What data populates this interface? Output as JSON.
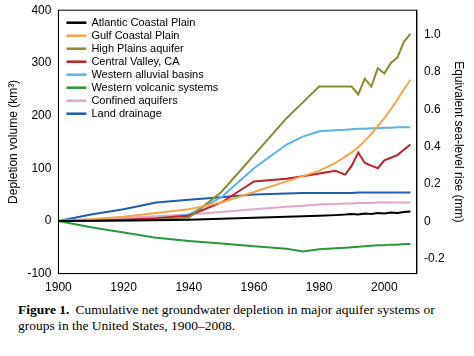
{
  "chart_data": {
    "type": "line",
    "y_label": "Depletion volume (km³)",
    "y2_label": "Equivalent sea-level rise (mm)",
    "caption": {
      "label": "Figure 1.",
      "text": "Cumulative net groundwater depletion in major aquifer systems or groups in the United States, 1900–2008."
    },
    "x": [
      1900,
      1910,
      1920,
      1930,
      1940,
      1950,
      1960,
      1970,
      1975,
      1980,
      1985,
      1988,
      1990,
      1992,
      1994,
      1996,
      1998,
      2000,
      2002,
      2004,
      2006,
      2008
    ],
    "series": [
      {
        "name": "Atlantic Coastal Plain",
        "color": "#000000",
        "values": [
          0,
          0.5,
          1,
          1.5,
          2,
          4,
          6,
          8,
          9,
          10,
          11,
          12,
          13,
          12,
          14,
          13,
          15,
          14,
          16,
          15,
          17,
          18
        ]
      },
      {
        "name": "Gulf Coastal Plain",
        "color": "#f5a54a",
        "values": [
          0,
          3,
          8,
          15,
          22,
          35,
          55,
          75,
          85,
          95,
          110,
          122,
          130,
          140,
          152,
          165,
          180,
          195,
          212,
          230,
          250,
          268
        ]
      },
      {
        "name": "High Plains aquifer",
        "color": "#8b8b33",
        "values": [
          0,
          0.5,
          1,
          2,
          6,
          55,
          125,
          195,
          225,
          255,
          255,
          255,
          255,
          240,
          270,
          255,
          290,
          280,
          300,
          310,
          340,
          355
        ]
      },
      {
        "name": "Central Valley, CA",
        "color": "#c0202a",
        "values": [
          0,
          0,
          2,
          5,
          10,
          35,
          75,
          80,
          85,
          90,
          95,
          88,
          105,
          130,
          110,
          105,
          100,
          115,
          120,
          125,
          135,
          145
        ]
      },
      {
        "name": "Western alluvial basins",
        "color": "#5ab4e5",
        "values": [
          0,
          1,
          2,
          4,
          12,
          45,
          100,
          145,
          160,
          170,
          172,
          173,
          174,
          175,
          175,
          176,
          176,
          177,
          177,
          178,
          178,
          178
        ]
      },
      {
        "name": "Western volcanic systems",
        "color": "#2a9a3a",
        "values": [
          0,
          -12,
          -22,
          -32,
          -38,
          -43,
          -48,
          -53,
          -58,
          -54,
          -52,
          -51,
          -50,
          -49,
          -48,
          -47,
          -46,
          -46,
          -45,
          -45,
          -44,
          -44
        ]
      },
      {
        "name": "Confined aquifers",
        "color": "#e0a8c8",
        "values": [
          0,
          3,
          6,
          9,
          12,
          17,
          22,
          27,
          29,
          31,
          32,
          33,
          33,
          34,
          34,
          34,
          35,
          35,
          35,
          35,
          35,
          35
        ]
      },
      {
        "name": "Land drainage",
        "color": "#1f5fa8",
        "values": [
          0,
          12,
          22,
          35,
          40,
          45,
          50,
          52,
          53,
          53,
          53,
          53,
          53,
          54,
          54,
          54,
          54,
          54,
          54,
          54,
          54,
          54
        ]
      }
    ],
    "xlim": [
      1900,
      2010
    ],
    "xticks": [
      1900,
      1920,
      1940,
      1960,
      1980,
      2000
    ],
    "ylim": [
      -100,
      400
    ],
    "yticks": [
      -100,
      0,
      100,
      200,
      300,
      400
    ],
    "y2lim": [
      -0.28,
      1.13
    ],
    "y2ticks": [
      -0.2,
      0,
      0.2,
      0.4,
      0.6,
      0.8,
      {
        "value": 1.0,
        "label": "1.0"
      }
    ],
    "grid": false,
    "legend": "upper left"
  }
}
